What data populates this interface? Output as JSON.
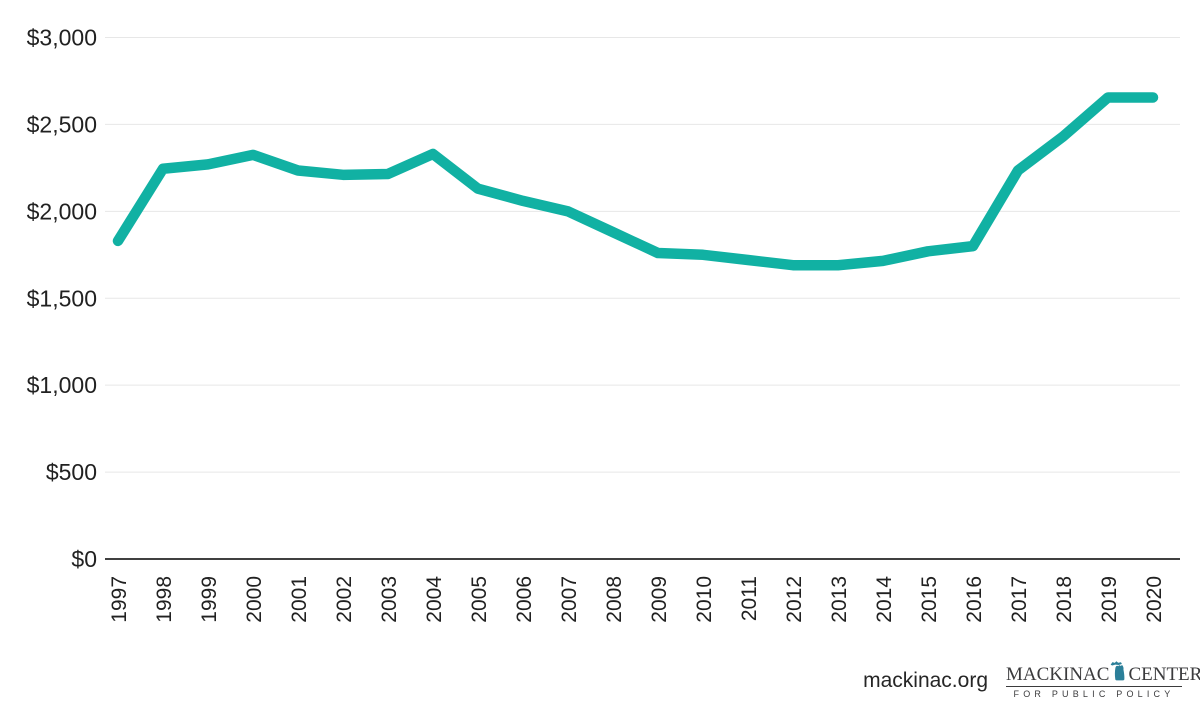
{
  "chart_data": {
    "type": "line",
    "x": [
      "1997",
      "1998",
      "1999",
      "2000",
      "2001",
      "2002",
      "2003",
      "2004",
      "2005",
      "2006",
      "2007",
      "2008",
      "2009",
      "2010",
      "2011",
      "2012",
      "2013",
      "2014",
      "2015",
      "2016",
      "2017",
      "2018",
      "2019",
      "2020"
    ],
    "series": [
      {
        "name": "dollars",
        "values": [
          1830,
          2245,
          2270,
          2325,
          2235,
          2210,
          2215,
          2330,
          2130,
          2060,
          2000,
          1880,
          1760,
          1750,
          1720,
          1690,
          1690,
          1715,
          1770,
          1800,
          2235,
          2430,
          2655,
          2655
        ]
      }
    ],
    "title": "",
    "xlabel": "",
    "ylabel": "",
    "ylim": [
      0,
      3000
    ],
    "yticks": [
      0,
      500,
      1000,
      1500,
      2000,
      2500,
      3000
    ],
    "ytick_labels": [
      "$0",
      "$500",
      "$1,000",
      "$1,500",
      "$2,000",
      "$2,500",
      "$3,000"
    ],
    "grid": "horizontal-light",
    "legend": "none",
    "line_color": "#11b1a3"
  },
  "footer": {
    "website": "mackinac.org",
    "logo": {
      "name_left": "MACKINAC",
      "name_right": "CENTER",
      "tagline": "FOR PUBLIC POLICY",
      "michigan_icon_color": "#2b7f99",
      "text_color": "#3b3b3d"
    }
  },
  "colors": {
    "line": "#11b1a3",
    "gridline": "#e7e7e7",
    "axis": "#404040",
    "tick_text": "#212121",
    "background": "#ffffff"
  }
}
